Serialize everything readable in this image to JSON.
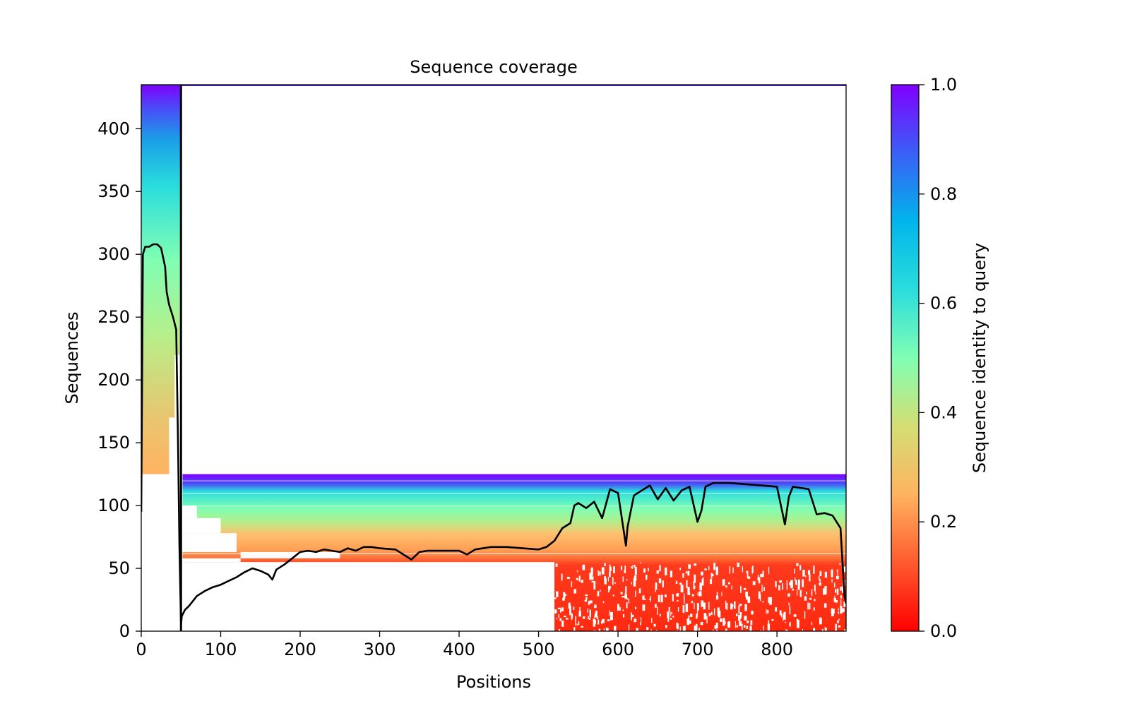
{
  "chart_data": {
    "type": "heatmap",
    "title": "Sequence coverage",
    "xlabel": "Positions",
    "ylabel": "Sequences",
    "xlim": [
      0,
      887
    ],
    "ylim": [
      0,
      435
    ],
    "x_ticks": [
      0,
      100,
      200,
      300,
      400,
      500,
      600,
      700,
      800
    ],
    "y_ticks": [
      0,
      50,
      100,
      150,
      200,
      250,
      300,
      350,
      400
    ],
    "x_tick_labels": [
      "0",
      "100",
      "200",
      "300",
      "400",
      "500",
      "600",
      "700",
      "800"
    ],
    "y_tick_labels": [
      "0",
      "50",
      "100",
      "150",
      "200",
      "250",
      "300",
      "350",
      "400"
    ],
    "colorbar": {
      "label": "Sequence identity to query",
      "range": [
        0.0,
        1.0
      ],
      "ticks": [
        0.0,
        0.2,
        0.4,
        0.6,
        0.8,
        1.0
      ],
      "tick_labels": [
        "0.0",
        "0.2",
        "0.4",
        "0.6",
        "0.8",
        "1.0"
      ],
      "colormap": "rainbow_r"
    },
    "domain_boundary_x": 50,
    "coverage_blocks": [
      {
        "x_start": 0,
        "x_end": 50,
        "y_start": 125,
        "y_end": 435
      },
      {
        "x_start": 52,
        "x_end": 887,
        "y_start": 0,
        "y_end": 125
      }
    ],
    "coverage_line": {
      "x": [
        0,
        2,
        5,
        10,
        15,
        20,
        25,
        30,
        32,
        35,
        40,
        44,
        46,
        48,
        50,
        51,
        55,
        60,
        70,
        80,
        90,
        100,
        110,
        120,
        130,
        140,
        150,
        160,
        165,
        170,
        180,
        190,
        200,
        210,
        220,
        230,
        240,
        250,
        260,
        270,
        280,
        290,
        300,
        320,
        340,
        350,
        360,
        380,
        400,
        410,
        420,
        440,
        460,
        480,
        500,
        510,
        520,
        530,
        540,
        545,
        550,
        560,
        570,
        580,
        590,
        600,
        610,
        612,
        620,
        630,
        640,
        650,
        660,
        670,
        680,
        690,
        700,
        705,
        710,
        720,
        740,
        760,
        780,
        800,
        810,
        815,
        820,
        840,
        850,
        860,
        870,
        880,
        885,
        887
      ],
      "y": [
        95,
        300,
        306,
        306,
        308,
        308,
        305,
        290,
        270,
        260,
        250,
        240,
        160,
        70,
        5,
        12,
        17,
        20,
        28,
        32,
        35,
        37,
        40,
        43,
        47,
        50,
        48,
        45,
        41,
        49,
        53,
        58,
        63,
        64,
        63,
        65,
        64,
        63,
        66,
        64,
        67,
        67,
        66,
        65,
        57,
        63,
        64,
        64,
        64,
        61,
        65,
        67,
        67,
        66,
        65,
        67,
        72,
        82,
        86,
        100,
        102,
        98,
        103,
        90,
        113,
        110,
        68,
        83,
        108,
        112,
        116,
        105,
        114,
        104,
        112,
        115,
        87,
        96,
        115,
        118,
        118,
        117,
        116,
        115,
        85,
        107,
        115,
        113,
        93,
        94,
        92,
        82,
        28,
        22
      ]
    }
  }
}
